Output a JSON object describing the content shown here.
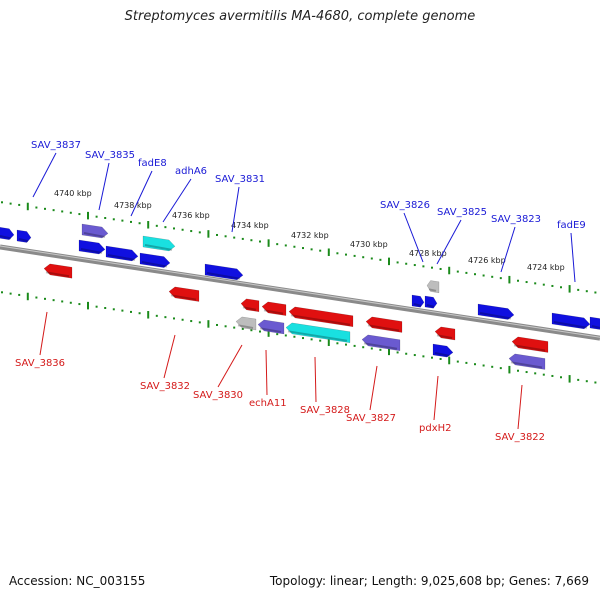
{
  "header": {
    "title": "Streptomyces avermitilis MA-4680, complete genome"
  },
  "footer": {
    "accession": "Accession: NC_003155",
    "stats": "Topology: linear; Length: 9,025,608 bp; Genes: 7,669"
  },
  "colors": {
    "forward_label": "#1a1ad6",
    "reverse_label": "#d41a1a",
    "forward_gene": "#1010e0",
    "reverse_gene": "#e01010",
    "cyan_gene": "#19e0e0",
    "purple_gene": "#6a5ad0",
    "grey_gene": "#bdbdbd",
    "tick_green": "#1a8a1a",
    "backbone": "#8a8a8a"
  },
  "scale_labels": [
    "4740 kbp",
    "4738 kbp",
    "4736 kbp",
    "4734 kbp",
    "4732 kbp",
    "4730 kbp",
    "4728 kbp",
    "4726 kbp",
    "4724 kbp"
  ],
  "forward_labels": [
    "SAV_3837",
    "SAV_3835",
    "fadE8",
    "adhA6",
    "SAV_3831",
    "SAV_3826",
    "SAV_3825",
    "SAV_3823",
    "fadE9"
  ],
  "reverse_labels": [
    "SAV_3836",
    "SAV_3832",
    "SAV_3830",
    "echA11",
    "SAV_3828",
    "SAV_3827",
    "pdxH2",
    "SAV_3822"
  ]
}
